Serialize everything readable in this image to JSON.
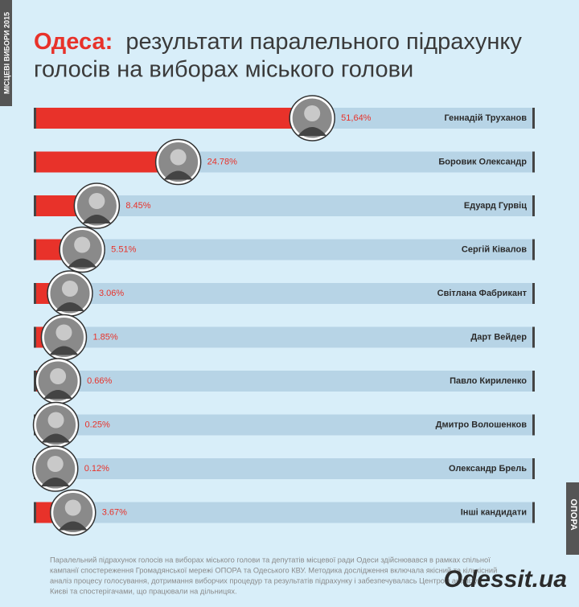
{
  "chart_data": {
    "type": "bar",
    "title_highlight": "Одеса:",
    "title_lines": [
      "результати паралельного підрахунку",
      "голосів на виборах міського голови"
    ],
    "side_label": "МІСЦЕВІ ВИБОРИ 2015",
    "brand": "ОПОРА",
    "categories": [
      "Геннадій Труханов",
      "Боровик Олександр",
      "Едуард Гурвіц",
      "Сергій Ківалов",
      "Світлана Фабрикант",
      "Дарт Вейдер",
      "Павло Кириленко",
      "Дмитро Волошенков",
      "Олександр Брель",
      "Інші кандидати"
    ],
    "values": [
      51.64,
      24.78,
      8.45,
      5.51,
      3.06,
      1.85,
      0.66,
      0.25,
      0.12,
      3.67
    ],
    "value_labels": [
      "51,64%",
      "24.78%",
      "8.45%",
      "5.51%",
      "3.06%",
      "1.85%",
      "0.66%",
      "0.25%",
      "0.12%",
      "3.67%"
    ],
    "color": "#e8322a",
    "xlim": [
      0,
      100
    ],
    "footer_lines": [
      "Паралельний підрахунок голосів на виборах міського голови та депутатів місцевої ради Одеси здійснювався в рамках спільної",
      "кампанії спостереження Громадянської мережі ОПОРА та Одеського КВУ. Методика дослідження включала якісний та кількісний",
      "аналіз процесу голосування, дотримання виборчих процедур та результатів підрахунку і забезпечувалась Центром аналізу",
      "Києві та спостерігачами, що працювали на дільницях."
    ],
    "logo": "Odessit.ua"
  }
}
